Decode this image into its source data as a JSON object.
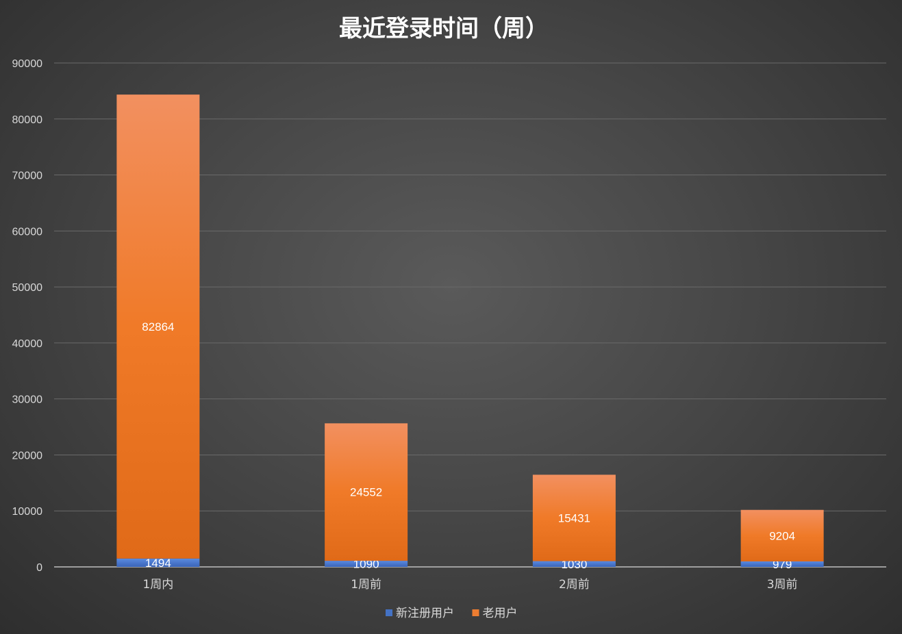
{
  "chart_data": {
    "type": "bar",
    "stacked": true,
    "title": "最近登录时间（周）",
    "xlabel": "",
    "ylabel": "",
    "categories": [
      "1周内",
      "1周前",
      "2周前",
      "3周前"
    ],
    "series": [
      {
        "name": "新注册用户",
        "values": [
          1494,
          1090,
          1030,
          979
        ],
        "color": "#4472c4"
      },
      {
        "name": "老用户",
        "values": [
          82864,
          24552,
          15431,
          9204
        ],
        "color": "#ed7d31"
      }
    ],
    "ylim": [
      0,
      90000
    ],
    "yticks": [
      0,
      10000,
      20000,
      30000,
      40000,
      50000,
      60000,
      70000,
      80000,
      90000
    ],
    "grid": true,
    "data_labels": true,
    "legend_position": "bottom"
  }
}
